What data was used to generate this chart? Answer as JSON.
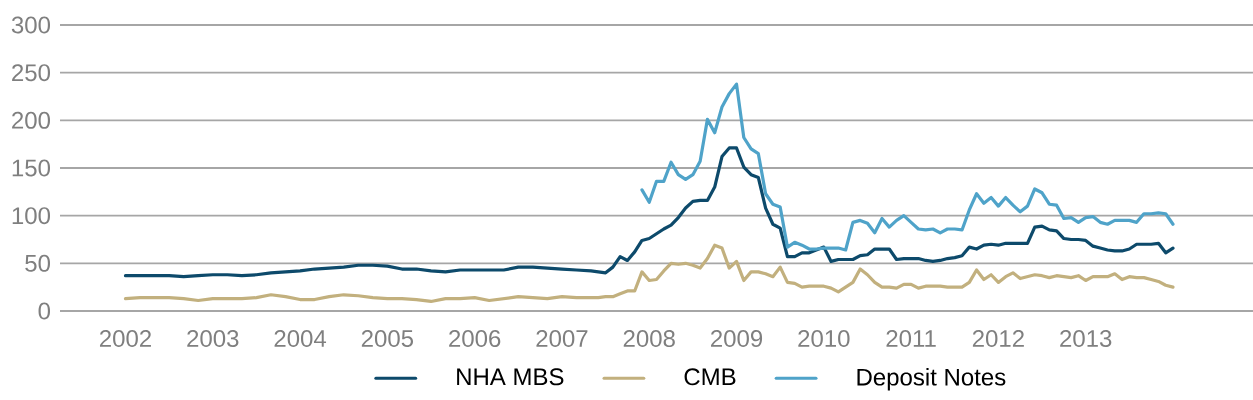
{
  "chart_data": {
    "type": "line",
    "x": [
      "2002-01",
      "2002-03",
      "2002-05",
      "2002-07",
      "2002-09",
      "2002-11",
      "2003-01",
      "2003-03",
      "2003-05",
      "2003-07",
      "2003-09",
      "2003-11",
      "2004-01",
      "2004-03",
      "2004-05",
      "2004-07",
      "2004-09",
      "2004-11",
      "2005-01",
      "2005-03",
      "2005-05",
      "2005-07",
      "2005-09",
      "2005-11",
      "2006-01",
      "2006-03",
      "2006-05",
      "2006-07",
      "2006-09",
      "2006-11",
      "2007-01",
      "2007-03",
      "2007-05",
      "2007-06",
      "2007-07",
      "2007-08",
      "2007-09",
      "2007-10",
      "2007-11",
      "2007-12",
      "2008-01",
      "2008-02",
      "2008-03",
      "2008-04",
      "2008-05",
      "2008-06",
      "2008-07",
      "2008-08",
      "2008-09",
      "2008-10",
      "2008-11",
      "2008-12",
      "2009-01",
      "2009-02",
      "2009-03",
      "2009-04",
      "2009-05",
      "2009-06",
      "2009-07",
      "2009-08",
      "2009-09",
      "2009-10",
      "2009-11",
      "2009-12",
      "2010-01",
      "2010-02",
      "2010-03",
      "2010-04",
      "2010-05",
      "2010-06",
      "2010-07",
      "2010-08",
      "2010-09",
      "2010-10",
      "2010-11",
      "2010-12",
      "2011-01",
      "2011-02",
      "2011-03",
      "2011-04",
      "2011-05",
      "2011-06",
      "2011-07",
      "2011-08",
      "2011-09",
      "2011-10",
      "2011-11",
      "2011-12",
      "2012-01",
      "2012-02",
      "2012-03",
      "2012-04",
      "2012-05",
      "2012-06",
      "2012-07",
      "2012-08",
      "2012-09",
      "2012-10",
      "2012-11",
      "2012-12",
      "2013-01",
      "2013-02",
      "2013-03",
      "2013-04",
      "2013-05",
      "2013-06",
      "2013-07",
      "2013-08",
      "2013-09",
      "2013-10",
      "2013-11",
      "2013-12",
      "2014-01"
    ],
    "series": [
      {
        "name": "NHA MBS",
        "color": "#0d4a6b",
        "values": [
          37,
          37,
          37,
          37,
          36,
          37,
          38,
          38,
          37,
          38,
          40,
          41,
          42,
          44,
          45,
          46,
          48,
          48,
          47,
          44,
          44,
          42,
          41,
          43,
          43,
          43,
          43,
          46,
          46,
          45,
          44,
          43,
          42,
          41,
          40,
          46,
          57,
          53,
          62,
          74,
          76,
          81,
          86,
          90,
          98,
          108,
          115,
          116,
          116,
          130,
          162,
          171,
          171,
          151,
          143,
          140,
          108,
          91,
          87,
          57,
          57,
          61,
          61,
          64,
          67,
          52,
          54,
          54,
          54,
          58,
          59,
          65,
          65,
          65,
          54,
          55,
          55,
          55,
          53,
          52,
          53,
          55,
          56,
          58,
          67,
          65,
          69,
          70,
          69,
          71,
          71,
          71,
          71,
          88,
          89,
          85,
          84,
          76,
          75,
          75,
          74,
          68,
          66,
          64,
          63,
          63,
          65,
          70,
          70,
          70,
          71,
          61,
          66
        ]
      },
      {
        "name": "CMB",
        "color": "#c2b07e",
        "values": [
          13,
          14,
          14,
          14,
          13,
          11,
          13,
          13,
          13,
          14,
          17,
          15,
          12,
          12,
          15,
          17,
          16,
          14,
          13,
          13,
          12,
          10,
          13,
          13,
          14,
          11,
          13,
          15,
          14,
          13,
          15,
          14,
          14,
          14,
          15,
          15,
          18,
          21,
          21,
          41,
          32,
          33,
          42,
          50,
          49,
          50,
          48,
          45,
          55,
          69,
          66,
          45,
          52,
          32,
          41,
          41,
          39,
          36,
          46,
          30,
          29,
          25,
          26,
          26,
          26,
          24,
          20,
          25,
          30,
          44,
          38,
          30,
          25,
          25,
          24,
          28,
          28,
          24,
          26,
          26,
          26,
          25,
          25,
          25,
          30,
          43,
          33,
          38,
          30,
          36,
          40,
          34,
          36,
          38,
          37,
          35,
          37,
          36,
          35,
          37,
          32,
          36,
          36,
          36,
          39,
          33,
          36,
          35,
          35,
          33,
          31,
          27,
          25
        ]
      },
      {
        "name": "Deposit Notes",
        "color": "#4fa3c9",
        "values": [
          null,
          null,
          null,
          null,
          null,
          null,
          null,
          null,
          null,
          null,
          null,
          null,
          null,
          null,
          null,
          null,
          null,
          null,
          null,
          null,
          null,
          null,
          null,
          null,
          null,
          null,
          null,
          null,
          null,
          null,
          null,
          null,
          null,
          null,
          null,
          null,
          null,
          null,
          null,
          127,
          114,
          136,
          136,
          156,
          143,
          138,
          143,
          157,
          201,
          187,
          214,
          228,
          238,
          182,
          170,
          165,
          123,
          112,
          109,
          67,
          72,
          69,
          65,
          65,
          66,
          66,
          66,
          64,
          93,
          95,
          92,
          82,
          97,
          88,
          95,
          100,
          93,
          86,
          85,
          86,
          82,
          86,
          86,
          85,
          106,
          123,
          113,
          119,
          110,
          119,
          111,
          104,
          110,
          128,
          124,
          112,
          111,
          97,
          98,
          93,
          98,
          99,
          93,
          91,
          95,
          95,
          95,
          93,
          102,
          102,
          103,
          102,
          91
        ]
      }
    ],
    "xlim": [
      "2001-04",
      "2014-12"
    ],
    "xticks": [
      {
        "value": "2002",
        "label": "2002"
      },
      {
        "value": "2003",
        "label": "2003"
      },
      {
        "value": "2004",
        "label": "2004"
      },
      {
        "value": "2005",
        "label": "2005"
      },
      {
        "value": "2006",
        "label": "2006"
      },
      {
        "value": "2007",
        "label": "2007"
      },
      {
        "value": "2008",
        "label": "2008"
      },
      {
        "value": "2009",
        "label": "2009"
      },
      {
        "value": "2010",
        "label": "2010"
      },
      {
        "value": "2011",
        "label": "2011"
      },
      {
        "value": "2012",
        "label": "2012"
      },
      {
        "value": "2013",
        "label": "2013"
      }
    ],
    "ylim": [
      0,
      300
    ],
    "yticks": [
      0,
      50,
      100,
      150,
      200,
      250,
      300
    ],
    "grid": "y",
    "legend": "bottom",
    "marker": "none",
    "line_style": "solid"
  }
}
